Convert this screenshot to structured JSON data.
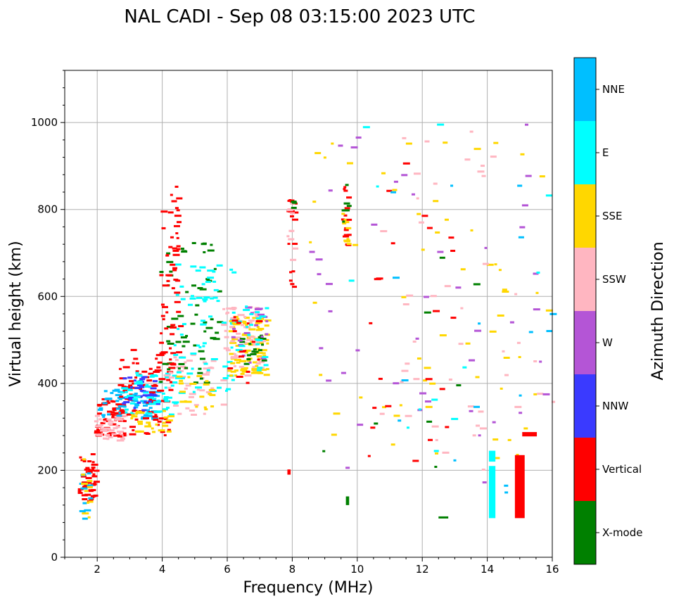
{
  "chart_data": {
    "type": "scatter",
    "title": "NAL CADI - Sep 08 03:15:00 2023 UTC",
    "xlabel": "Frequency (MHz)",
    "ylabel": "Virtual height (km)",
    "xlim": [
      1,
      16
    ],
    "ylim": [
      0,
      1120
    ],
    "xticks": [
      2,
      4,
      6,
      8,
      10,
      12,
      14,
      16
    ],
    "yticks": [
      0,
      200,
      400,
      600,
      800,
      1000
    ],
    "grid": true,
    "colorbar": {
      "label": "Azimuth Direction",
      "categories": [
        "X-mode",
        "Vertical",
        "NNW",
        "W",
        "SSW",
        "SSE",
        "E",
        "NNE"
      ],
      "colors": [
        "#008000",
        "#ff0000",
        "#3a3aff",
        "#b455d6",
        "#ffb6c1",
        "#ffd700",
        "#00ffff",
        "#00bfff"
      ]
    },
    "clusters": [
      {
        "category": "Vertical",
        "x": [
          1.4,
          1.9
        ],
        "y": [
          120,
          240
        ],
        "n": 45
      },
      {
        "category": "NNE",
        "x": [
          1.4,
          1.8
        ],
        "y": [
          90,
          240
        ],
        "n": 12
      },
      {
        "category": "SSE",
        "x": [
          1.4,
          1.8
        ],
        "y": [
          90,
          230
        ],
        "n": 10
      },
      {
        "category": "Vertical",
        "x": [
          1.9,
          2.7
        ],
        "y": [
          280,
          370
        ],
        "n": 60
      },
      {
        "category": "SSW",
        "x": [
          1.9,
          2.8
        ],
        "y": [
          270,
          330
        ],
        "n": 40
      },
      {
        "category": "NNE",
        "x": [
          2.0,
          3.8
        ],
        "y": [
          320,
          390
        ],
        "n": 60
      },
      {
        "category": "Vertical",
        "x": [
          2.6,
          4.3
        ],
        "y": [
          280,
          480
        ],
        "n": 90
      },
      {
        "category": "NNW",
        "x": [
          2.7,
          3.8
        ],
        "y": [
          340,
          420
        ],
        "n": 40
      },
      {
        "category": "E",
        "x": [
          2.7,
          4.4
        ],
        "y": [
          330,
          430
        ],
        "n": 55
      },
      {
        "category": "SSE",
        "x": [
          3.0,
          4.2
        ],
        "y": [
          290,
          340
        ],
        "n": 25
      },
      {
        "category": "SSW",
        "x": [
          4.0,
          5.8
        ],
        "y": [
          330,
          470
        ],
        "n": 45
      },
      {
        "category": "X-mode",
        "x": [
          3.9,
          5.7
        ],
        "y": [
          400,
          740
        ],
        "n": 60
      },
      {
        "category": "E",
        "x": [
          4.3,
          6.2
        ],
        "y": [
          380,
          680
        ],
        "n": 70
      },
      {
        "category": "Vertical",
        "x": [
          3.9,
          4.5
        ],
        "y": [
          440,
          860
        ],
        "n": 55
      },
      {
        "category": "SSE",
        "x": [
          4.4,
          5.6
        ],
        "y": [
          340,
          420
        ],
        "n": 20
      },
      {
        "category": "SSE",
        "x": [
          6.0,
          7.2
        ],
        "y": [
          420,
          560
        ],
        "n": 90
      },
      {
        "category": "SSW",
        "x": [
          5.8,
          7.0
        ],
        "y": [
          420,
          580
        ],
        "n": 55
      },
      {
        "category": "X-mode",
        "x": [
          6.3,
          7.1
        ],
        "y": [
          440,
          520
        ],
        "n": 18
      },
      {
        "category": "W",
        "x": [
          6.0,
          7.2
        ],
        "y": [
          440,
          580
        ],
        "n": 18
      },
      {
        "category": "E",
        "x": [
          6.2,
          7.2
        ],
        "y": [
          430,
          590
        ],
        "n": 20
      },
      {
        "category": "Vertical",
        "x": [
          6.0,
          7.0
        ],
        "y": [
          400,
          560
        ],
        "n": 15
      },
      {
        "category": "Vertical",
        "x": [
          7.8,
          8.0
        ],
        "y": [
          600,
          830
        ],
        "n": 18
      },
      {
        "category": "SSW",
        "x": [
          7.8,
          8.0
        ],
        "y": [
          680,
          820
        ],
        "n": 10
      },
      {
        "category": "X-mode",
        "x": [
          7.9,
          8.0
        ],
        "y": [
          800,
          830
        ],
        "n": 4
      },
      {
        "category": "Vertical",
        "x": [
          9.5,
          9.7
        ],
        "y": [
          720,
          860
        ],
        "n": 16
      },
      {
        "category": "SSE",
        "x": [
          9.5,
          9.7
        ],
        "y": [
          720,
          820
        ],
        "n": 8
      },
      {
        "category": "X-mode",
        "x": [
          9.5,
          9.7
        ],
        "y": [
          720,
          860
        ],
        "n": 6
      },
      {
        "category": "SSE",
        "x": [
          8.5,
          16.0
        ],
        "y": [
          200,
          1000
        ],
        "n": 60
      },
      {
        "category": "SSW",
        "x": [
          10.5,
          16.0
        ],
        "y": [
          200,
          1000
        ],
        "n": 45
      },
      {
        "category": "W",
        "x": [
          8.5,
          16.0
        ],
        "y": [
          100,
          1000
        ],
        "n": 45
      },
      {
        "category": "Vertical",
        "x": [
          10.0,
          13.0
        ],
        "y": [
          200,
          980
        ],
        "n": 22
      },
      {
        "category": "NNE",
        "x": [
          10.5,
          16.0
        ],
        "y": [
          150,
          860
        ],
        "n": 16
      },
      {
        "category": "E",
        "x": [
          8.5,
          16.0
        ],
        "y": [
          100,
          1000
        ],
        "n": 12
      },
      {
        "category": "X-mode",
        "x": [
          8.5,
          14.0
        ],
        "y": [
          90,
          1000
        ],
        "n": 8
      }
    ],
    "segments": [
      {
        "category": "E",
        "x": 14.15,
        "y": [
          90,
          210
        ],
        "width": 0.2
      },
      {
        "category": "E",
        "x": 14.15,
        "y": [
          220,
          245
        ],
        "width": 0.2
      },
      {
        "category": "Vertical",
        "x": 15.0,
        "y": [
          90,
          235
        ],
        "width": 0.3
      },
      {
        "category": "X-mode",
        "x": 9.7,
        "y": [
          120,
          140
        ],
        "width": 0.1
      },
      {
        "category": "X-mode",
        "x": 12.65,
        "y": [
          90,
          94
        ],
        "width": 0.3
      },
      {
        "category": "Vertical",
        "x": 7.9,
        "y": [
          190,
          202
        ],
        "width": 0.1
      },
      {
        "category": "Vertical",
        "x": 15.3,
        "y": [
          278,
          288
        ],
        "width": 0.45
      }
    ]
  }
}
